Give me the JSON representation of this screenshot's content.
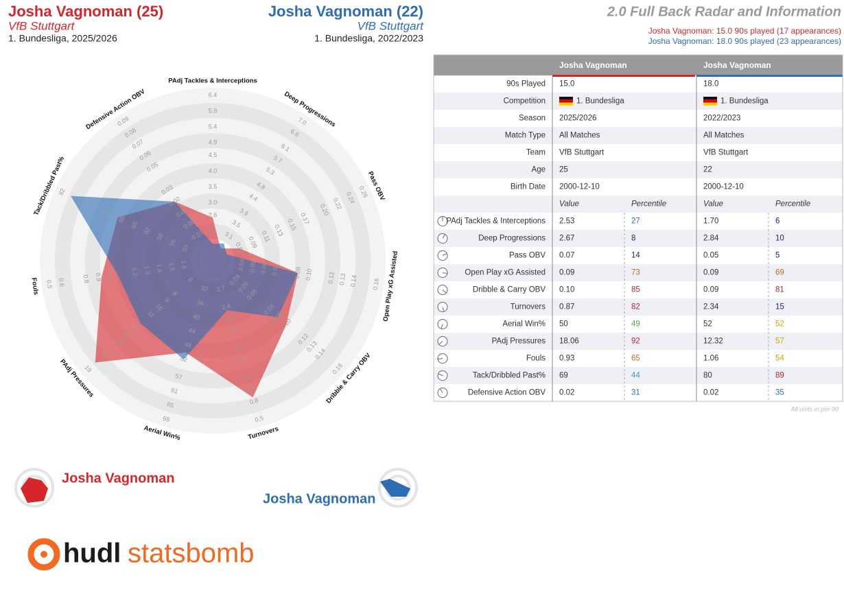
{
  "header": {
    "left": {
      "title": "Josha Vagnoman (25)",
      "team": "VfB Stuttgart",
      "competition": "1. Bundesliga, 2025/2026"
    },
    "right": {
      "title": "Josha Vagnoman (22)",
      "team": "VfB Stuttgart",
      "competition": "1. Bundesliga, 2022/2023"
    },
    "title": "2.0 Full Back Radar and Information",
    "notes": [
      "Josha Vagnoman: 15.0 90s played (17 appearances)",
      "Josha Vagnoman: 18.0 90s played (23 appearances)"
    ]
  },
  "chart_data": {
    "type": "radar",
    "axes": [
      {
        "name": "PAdj Tackles & Interceptions",
        "lim": [
          2.1,
          6.4
        ],
        "ticks": [
          2.1,
          2.6,
          {
            "value": 3.0,
            "label": "3.0"
          },
          3.5,
          {
            "value": 4.0,
            "label": "4.0"
          },
          4.5,
          4.9,
          5.4,
          5.9,
          6.4
        ]
      },
      {
        "name": "Deep Progressions",
        "lim": [
          3.1,
          7.0
        ],
        "ticks": [
          3.1,
          3.5,
          3.9,
          4.4,
          4.8,
          5.3,
          5.7,
          6.1,
          6.6,
          {
            "value": 7.0,
            "label": "7.0"
          }
        ]
      },
      {
        "name": "Pass OBV",
        "lim": [
          0.07,
          0.26
        ],
        "ticks": [
          0.07,
          0.09,
          0.11,
          0.13,
          0.15,
          0.17,
          {
            "value": 0.2,
            "label": "0.20"
          },
          0.22,
          0.24,
          0.26
        ]
      },
      {
        "name": "Open Play xG Assisted",
        "lim": [
          0.04,
          0.16
        ],
        "ticks": [
          0.04,
          0.05,
          0.06,
          0.07,
          0.09,
          {
            "value": 0.1,
            "label": "0.10"
          },
          0.12,
          0.13,
          0.14,
          0.16
        ]
      },
      {
        "name": "Dribble & Carry OBV",
        "lim": [
          0.04,
          0.16
        ],
        "ticks": [
          0.04,
          0.05,
          0.06,
          0.08,
          0.09,
          {
            "value": 0.1,
            "label": "0.10"
          },
          0.12,
          0.13,
          0.14,
          0.16
        ]
      },
      {
        "name": "Turnovers",
        "lim": [
          2.7,
          0.5
        ],
        "ticks": [
          2.7,
          2.4,
          2.2,
          {
            "value": 2.0,
            "label": "2.0"
          },
          1.7,
          1.5,
          1.2,
          {
            "value": 1.0,
            "label": "1.0"
          },
          0.8,
          0.5
        ]
      },
      {
        "name": "Aerial Win%",
        "lim": [
          32,
          69
        ],
        "ticks": [
          32,
          36,
          40,
          44,
          48,
          52,
          57,
          61,
          65,
          69
        ]
      },
      {
        "name": "PAdj Pressures",
        "lim": [
          6,
          19
        ],
        "ticks": [
          6,
          8,
          9,
          10,
          11,
          13,
          14,
          15,
          17,
          19
        ]
      },
      {
        "name": "Fouls",
        "lim": [
          1.6,
          0.5
        ],
        "ticks": [
          1.6,
          1.5,
          1.4,
          1.3,
          1.2,
          {
            "value": 1.0,
            "label": "1.0"
          },
          0.9,
          0.8,
          0.6,
          0.5
        ]
      },
      {
        "name": "Tack/Dribbled Past%",
        "lim": [
          53,
          82
        ],
        "ticks": [
          53,
          56,
          59,
          62,
          65,
          68,
          71,
          74,
          77,
          82
        ]
      },
      {
        "name": "Defensive Action OBV",
        "lim": [
          -0.01,
          0.09
        ],
        "ticks": [
          -0.01,
          {
            "value": 0,
            "label": "0.00"
          },
          0.01,
          0.02,
          0.03,
          0.05,
          0.06,
          0.07,
          0.08,
          0.09
        ]
      }
    ],
    "series": [
      {
        "name": "Josha Vagnoman",
        "color": "#d7262b",
        "values": [
          2.53,
          2.67,
          0.07,
          0.09,
          0.1,
          0.87,
          50,
          18.06,
          0.93,
          69,
          0.02
        ],
        "value_labels": [
          "2.53",
          "2.67",
          "0.07",
          "0.09",
          "0.10",
          "0.87",
          "50",
          "18.06",
          "0.93",
          "69",
          "0.02"
        ],
        "percentiles": [
          27,
          8,
          14,
          73,
          85,
          82,
          49,
          92,
          65,
          44,
          31
        ]
      },
      {
        "name": "Josha Vagnoman",
        "color": "#2e6db4",
        "values": [
          1.7,
          2.84,
          0.05,
          0.09,
          0.09,
          2.34,
          52,
          12.32,
          1.06,
          80,
          0.02
        ],
        "value_labels": [
          "1.70",
          "2.84",
          "0.05",
          "0.09",
          "0.09",
          "2.34",
          "52",
          "12.32",
          "1.06",
          "80",
          "0.02"
        ],
        "percentiles": [
          6,
          10,
          5,
          69,
          81,
          15,
          52,
          57,
          54,
          89,
          35
        ]
      }
    ]
  },
  "table": {
    "columns": [
      "Josha Vagnoman",
      "Josha Vagnoman"
    ],
    "info_rows": [
      {
        "label": "90s Played",
        "values": [
          "15.0",
          "18.0"
        ]
      },
      {
        "label": "Competition",
        "values": [
          "1. Bundesliga",
          "1. Bundesliga"
        ]
      },
      {
        "label": "Season",
        "values": [
          "2025/2026",
          "2022/2023"
        ]
      },
      {
        "label": "Match Type",
        "values": [
          "All Matches",
          "All Matches"
        ]
      },
      {
        "label": "Team",
        "values": [
          "VfB Stuttgart",
          "VfB Stuttgart"
        ]
      },
      {
        "label": "Age",
        "values": [
          25,
          22
        ]
      },
      {
        "label": "Birth Date",
        "values": [
          "2000-12-10",
          "2000-12-10"
        ]
      }
    ],
    "subheader": [
      "Value",
      "Percentile"
    ],
    "footnote": "All units in per-90"
  },
  "logo": {
    "brand": "hudl",
    "product": "statsbomb"
  }
}
